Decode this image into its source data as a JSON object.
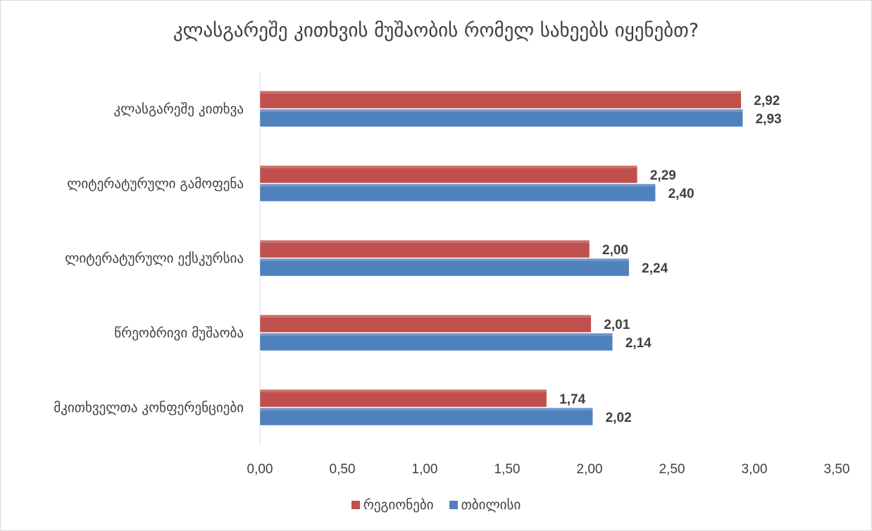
{
  "chart_data": {
    "type": "bar",
    "orientation": "horizontal",
    "title": "კლასგარეშე კითხვის მუშაობის რომელ სახეებს იყენებთ?",
    "categories": [
      "კლასგარეშე კითხვა",
      "ლიტერატურული გამოფენა",
      "ლიტერატურული ექსკურსია",
      "წრეობრივი მუშაობა",
      "მკითხველთა კონფერენციები"
    ],
    "series": [
      {
        "name": "რეგიონები",
        "color": "#c0504d",
        "values": [
          2.92,
          2.29,
          2.0,
          2.01,
          1.74
        ],
        "labels": [
          "2,92",
          "2,29",
          "2,00",
          "2,01",
          "1,74"
        ]
      },
      {
        "name": "თბილისი",
        "color": "#4f81bd",
        "values": [
          2.93,
          2.4,
          2.24,
          2.14,
          2.02
        ],
        "labels": [
          "2,93",
          "2,40",
          "2,24",
          "2,14",
          "2,02"
        ]
      }
    ],
    "xlim": [
      0,
      3.5
    ],
    "xticks": [
      "0,00",
      "0,50",
      "1,00",
      "1,50",
      "2,00",
      "2,50",
      "3,00",
      "3,50"
    ],
    "grid": false,
    "legend_position": "bottom"
  }
}
